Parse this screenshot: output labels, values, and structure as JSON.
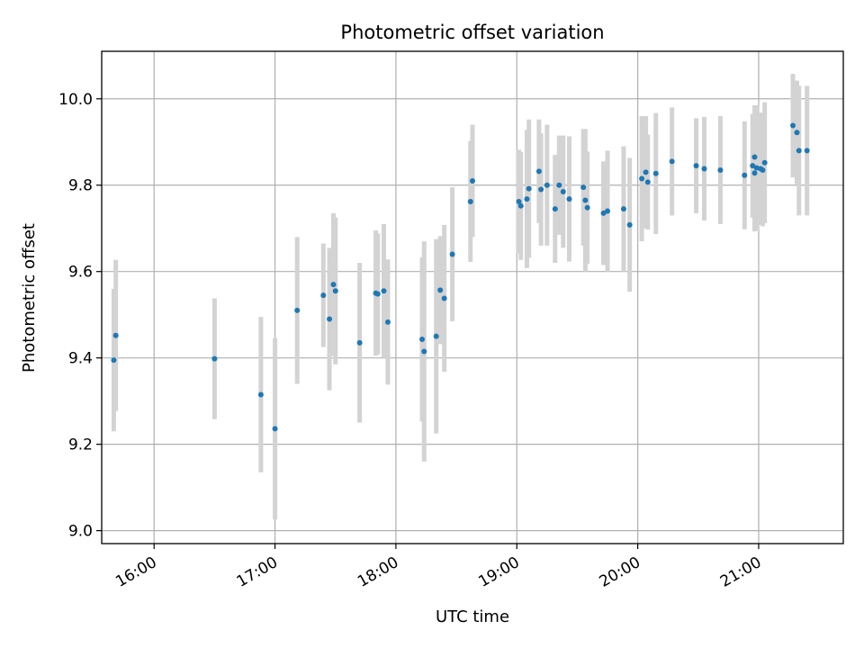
{
  "chart_data": {
    "type": "scatter",
    "title": "Photometric offset variation",
    "xlabel": "UTC time",
    "ylabel": "Photometric offset",
    "x_ticks": [
      "16:00",
      "17:00",
      "18:00",
      "19:00",
      "20:00",
      "21:00"
    ],
    "x_tick_hours": [
      16,
      17,
      18,
      19,
      20,
      21
    ],
    "y_ticks": [
      "9.0",
      "9.2",
      "9.4",
      "9.6",
      "9.8",
      "10.0"
    ],
    "y_tick_values": [
      9.0,
      9.2,
      9.4,
      9.6,
      9.8,
      10.0
    ],
    "xlim": [
      "15:34",
      "21:42"
    ],
    "ylim": [
      8.97,
      10.11
    ],
    "grid": true,
    "marker_color": "#1f77b4",
    "errorbar_color": "#d3d3d3",
    "series": [
      {
        "x": [
          "15:40",
          "15:41",
          "16:30",
          "16:53",
          "17:00",
          "17:11",
          "17:24",
          "17:27",
          "17:29",
          "17:30",
          "17:42",
          "17:50",
          "17:51",
          "17:54",
          "17:56",
          "18:13",
          "18:14",
          "18:20",
          "18:22",
          "18:24",
          "18:28",
          "18:37",
          "18:38",
          "19:01",
          "19:02",
          "19:05",
          "19:06",
          "19:11",
          "19:12",
          "19:15",
          "19:19",
          "19:21",
          "19:23",
          "19:26",
          "19:33",
          "19:34",
          "19:35",
          "19:43",
          "19:45",
          "19:53",
          "19:56",
          "20:02",
          "20:04",
          "20:05",
          "20:09",
          "20:17",
          "20:29",
          "20:33",
          "20:41",
          "20:53",
          "20:57",
          "20:58",
          "20:58",
          "20:59",
          "21:01",
          "21:02",
          "21:03",
          "21:17",
          "21:19",
          "21:20",
          "21:24"
        ],
        "y": [
          9.395,
          9.452,
          9.398,
          9.315,
          9.236,
          9.51,
          9.545,
          9.49,
          9.57,
          9.555,
          9.435,
          9.55,
          9.548,
          9.555,
          9.483,
          9.443,
          9.415,
          9.45,
          9.557,
          9.538,
          9.64,
          9.762,
          9.81,
          9.762,
          9.752,
          9.768,
          9.792,
          9.832,
          9.79,
          9.8,
          9.745,
          9.8,
          9.785,
          9.768,
          9.795,
          9.765,
          9.748,
          9.735,
          9.74,
          9.745,
          9.708,
          9.815,
          9.83,
          9.807,
          9.827,
          9.855,
          9.845,
          9.838,
          9.835,
          9.823,
          9.845,
          9.828,
          9.865,
          9.84,
          9.838,
          9.835,
          9.852,
          9.938,
          9.922,
          9.88,
          9.88
        ],
        "err": [
          0.165,
          0.175,
          0.14,
          0.18,
          0.21,
          0.17,
          0.12,
          0.165,
          0.165,
          0.17,
          0.185,
          0.145,
          0.14,
          0.155,
          0.145,
          0.19,
          0.255,
          0.225,
          0.125,
          0.17,
          0.155,
          0.14,
          0.13,
          0.12,
          0.125,
          0.16,
          0.16,
          0.12,
          0.13,
          0.14,
          0.125,
          0.115,
          0.13,
          0.145,
          0.135,
          0.165,
          0.13,
          0.12,
          0.14,
          0.145,
          0.155,
          0.145,
          0.13,
          0.11,
          0.14,
          0.125,
          0.11,
          0.12,
          0.125,
          0.125,
          0.12,
          0.135,
          0.12,
          0.145,
          0.13,
          0.13,
          0.14,
          0.12,
          0.12,
          0.15,
          0.15
        ]
      }
    ]
  }
}
